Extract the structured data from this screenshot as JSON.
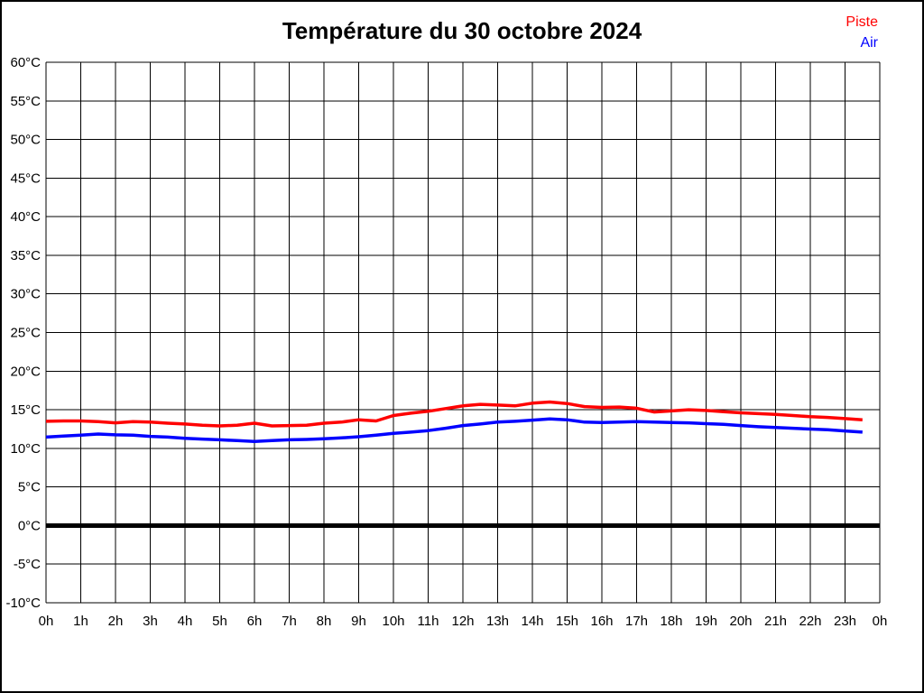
{
  "title": "Température du 30 octobre 2024",
  "legend": {
    "piste_label": "Piste",
    "air_label": "Air",
    "position": "top-right"
  },
  "colors": {
    "piste": "#ff0000",
    "air": "#0000ff",
    "grid": "#000000",
    "zero_line": "#000000",
    "axis_text": "#000000",
    "background": "#ffffff"
  },
  "chart_data": {
    "type": "line",
    "title": "Température du 30 octobre 2024",
    "xlabel": "",
    "ylabel": "",
    "xlim": [
      0,
      24
    ],
    "ylim": [
      -10,
      60
    ],
    "y_tick_step": 5,
    "y_tick_suffix": "°C",
    "x_tick_labels": [
      "0h",
      "1h",
      "2h",
      "3h",
      "4h",
      "5h",
      "6h",
      "7h",
      "8h",
      "9h",
      "10h",
      "11h",
      "12h",
      "13h",
      "14h",
      "15h",
      "16h",
      "17h",
      "18h",
      "19h",
      "20h",
      "21h",
      "22h",
      "23h",
      "0h"
    ],
    "grid": true,
    "zero_line_bold": true,
    "x": [
      0,
      0.5,
      1,
      1.5,
      2,
      2.5,
      3,
      3.5,
      4,
      4.5,
      5,
      5.5,
      6,
      6.5,
      7,
      7.5,
      8,
      8.5,
      9,
      9.5,
      10,
      10.5,
      11,
      11.5,
      12,
      12.5,
      13,
      13.5,
      14,
      14.5,
      15,
      15.5,
      16,
      16.5,
      17,
      17.5,
      18,
      18.5,
      19,
      19.5,
      20,
      20.5,
      21,
      21.5,
      22,
      22.5,
      23,
      23.5
    ],
    "series": [
      {
        "name": "Piste",
        "color": "#ff0000",
        "values": [
          13.5,
          13.55,
          13.55,
          13.45,
          13.3,
          13.45,
          13.4,
          13.25,
          13.15,
          13.0,
          12.9,
          13.0,
          13.25,
          12.9,
          12.95,
          13.0,
          13.25,
          13.4,
          13.7,
          13.55,
          14.25,
          14.55,
          14.8,
          15.15,
          15.5,
          15.7,
          15.6,
          15.5,
          15.85,
          16.0,
          15.8,
          15.4,
          15.3,
          15.35,
          15.2,
          14.7,
          14.85,
          15.0,
          14.9,
          14.75,
          14.6,
          14.5,
          14.4,
          14.25,
          14.1,
          14.0,
          13.85,
          13.7
        ]
      },
      {
        "name": "Air",
        "color": "#0000ff",
        "values": [
          11.45,
          11.6,
          11.7,
          11.85,
          11.75,
          11.7,
          11.55,
          11.45,
          11.3,
          11.2,
          11.1,
          11.0,
          10.9,
          11.0,
          11.1,
          11.15,
          11.25,
          11.35,
          11.5,
          11.7,
          11.95,
          12.1,
          12.3,
          12.6,
          12.95,
          13.15,
          13.4,
          13.5,
          13.65,
          13.8,
          13.7,
          13.4,
          13.35,
          13.4,
          13.45,
          13.4,
          13.35,
          13.3,
          13.2,
          13.1,
          12.95,
          12.8,
          12.7,
          12.6,
          12.5,
          12.4,
          12.25,
          12.1
        ]
      }
    ]
  }
}
